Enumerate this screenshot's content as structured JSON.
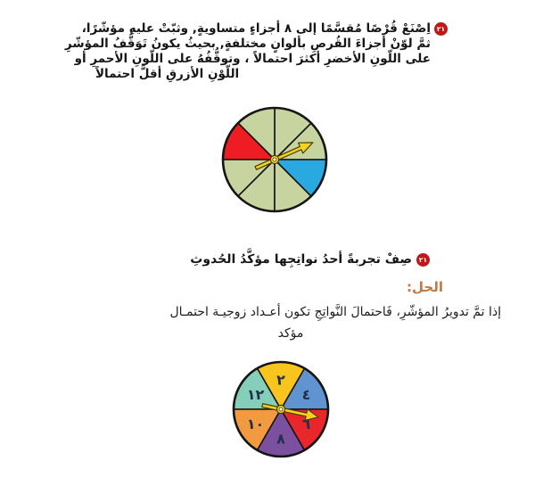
{
  "page": {
    "background": "#ffffff",
    "language": "arabic",
    "type": "math-textbook-probability-page"
  },
  "problem1": {
    "number": "٢١",
    "badge_color": "#c01818",
    "lines": [
      "اِصْنَعْ قُرْصًا مُقسَّمًا إلى ٨ أجزاءٍ متساويةٍ, وثبّتْ عليهِ مؤشّرًا،",
      "ثمَّ لوّنْ أجزاءَ القُرصِ بألوانٍ مختلفةٍ, بحيثُ يكونُ تَوَقُّفُ المؤشّرِ",
      "على اللّونِ الأخضرِ أكثرَ احتمالاً ، وتوقُّفُهُ على اللّونِ الأحمرِ أو",
      "اللّوْنِ الأزرقِ أقلَّ احتمالاً"
    ],
    "spinner": {
      "description": "circle divided into 8 equal sectors: 6 green, 1 red, 1 blue, with pointer arrow",
      "size": 140,
      "radius": 58,
      "outline_color": "#151515",
      "line_color": "#151515",
      "label_color": "#22304f",
      "sectors": [
        {
          "start": 0,
          "end": 45,
          "color": "#c8d4a0",
          "label": ""
        },
        {
          "start": 45,
          "end": 90,
          "color": "#c8d4a0",
          "label": ""
        },
        {
          "start": 90,
          "end": 135,
          "color": "#c8d4a0",
          "label": ""
        },
        {
          "start": 135,
          "end": 180,
          "color": "#ee1c23",
          "label": ""
        },
        {
          "start": 180,
          "end": 225,
          "color": "#c8d4a0",
          "label": ""
        },
        {
          "start": 225,
          "end": 270,
          "color": "#c8d4a0",
          "label": ""
        },
        {
          "start": 270,
          "end": 315,
          "color": "#c8d4a0",
          "label": ""
        },
        {
          "start": 315,
          "end": 360,
          "color": "#2aa9e0",
          "label": ""
        }
      ],
      "arrow": {
        "angle_deg": 24,
        "color": "#f4d21f",
        "outline": "#4a3b00"
      }
    }
  },
  "problem2": {
    "number": "٢١",
    "badge_color": "#c01818",
    "question": "صِفْ تجربةً أحدُ نواتِجِها مؤكَّدُ الحُدوثِ",
    "solution_label": "الحل:",
    "solution_label_color": "#c07a45",
    "solution_lines": [
      "إذا تمَّ تدويرُ المؤشّرِ، فَاحتمالَ النَّواتِجِ تكون أعـداد زوجيـة احتمـال",
      "مؤكد"
    ],
    "spinner": {
      "description": "circle divided into 6 equal sectors labeled with even numbers, pointer on sector 6",
      "size": 130,
      "radius": 53,
      "outline_color": "#151515",
      "line_color": "#151515",
      "label_color": "#22304f",
      "sectors": [
        {
          "start": 0,
          "end": 60,
          "color": "#5f94d1",
          "label": "٤"
        },
        {
          "start": 60,
          "end": 120,
          "color": "#f7c51e",
          "label": "٢"
        },
        {
          "start": 120,
          "end": 180,
          "color": "#85ceb9",
          "label": "١٢"
        },
        {
          "start": 180,
          "end": 240,
          "color": "#f29a40",
          "label": "١٠"
        },
        {
          "start": 240,
          "end": 300,
          "color": "#7b509f",
          "label": "٨"
        },
        {
          "start": 300,
          "end": 360,
          "color": "#e9262c",
          "label": "٦"
        }
      ],
      "arrow": {
        "angle_deg": -12,
        "color": "#f4d21f",
        "outline": "#4a3b00"
      }
    }
  }
}
